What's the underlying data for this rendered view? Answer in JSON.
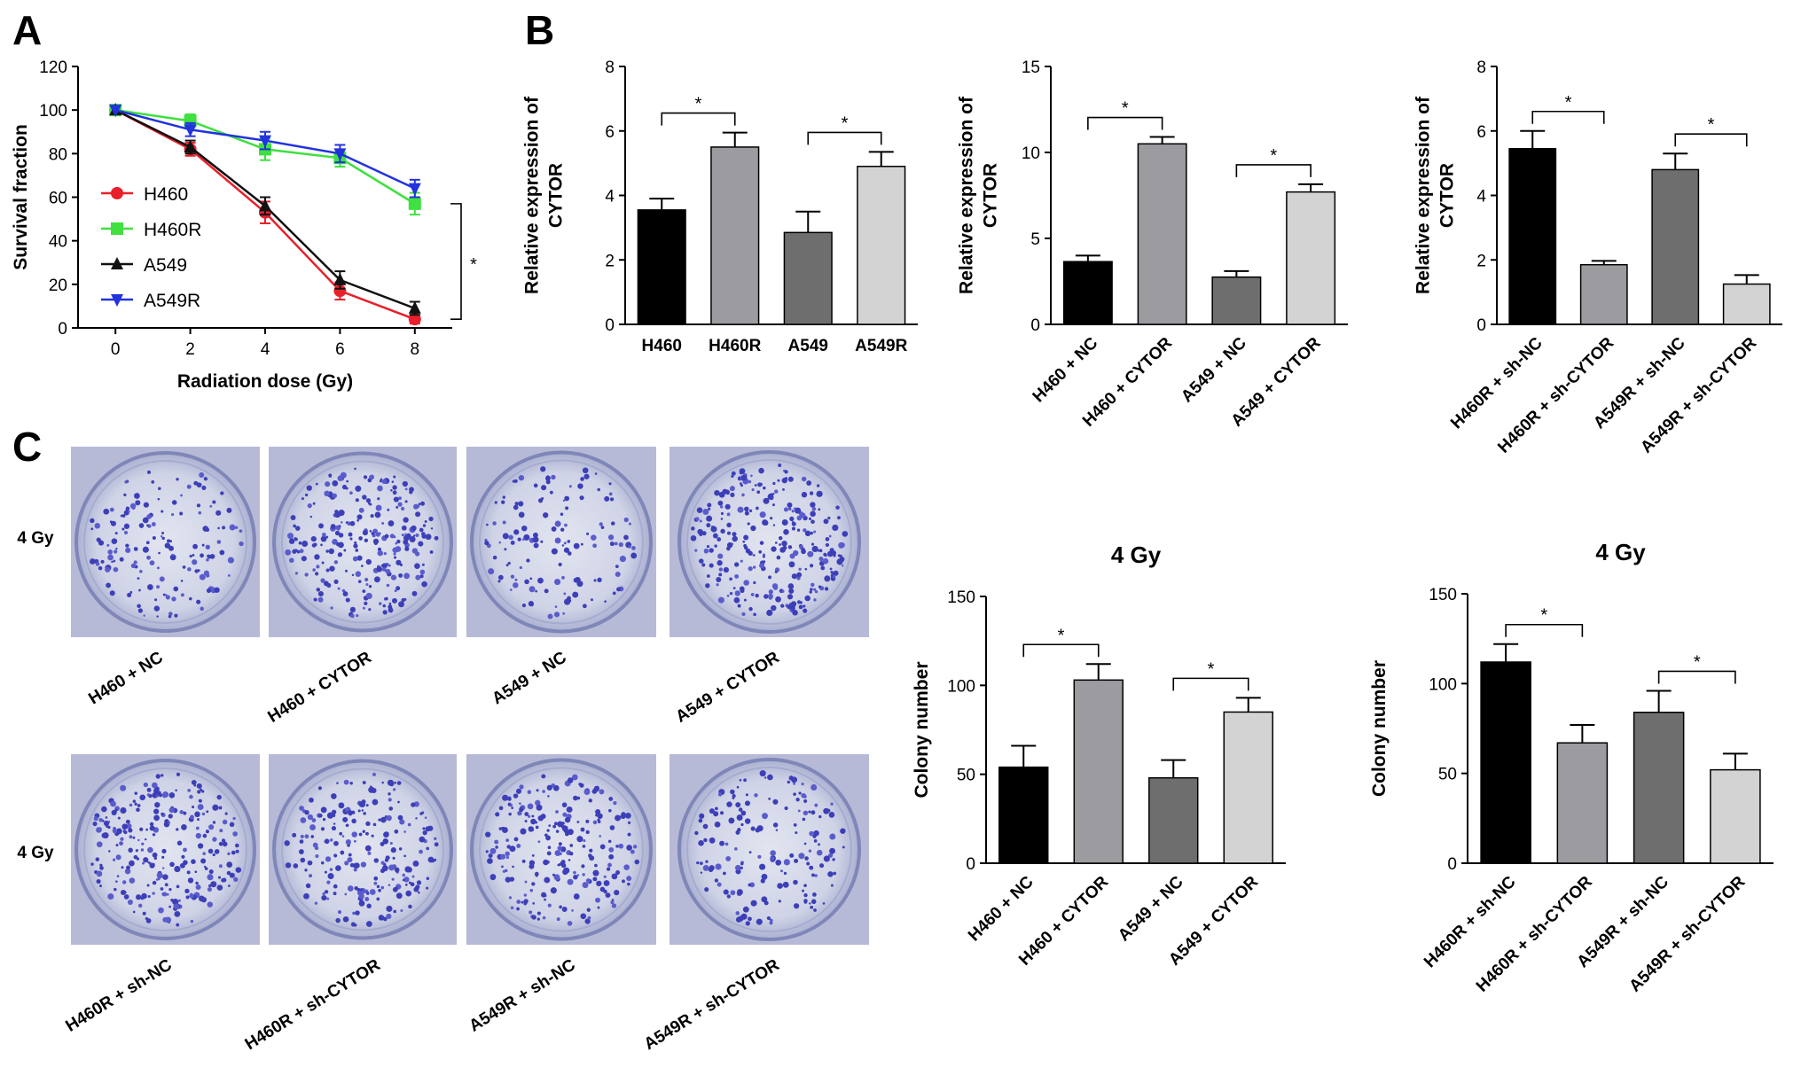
{
  "panels": {
    "a": "A",
    "b": "B",
    "c": "C"
  },
  "chart_data": [
    {
      "id": "A",
      "type": "line",
      "xlabel": "Radiation dose (Gy)",
      "ylabel": "Survival fraction",
      "x": [
        0,
        2,
        4,
        6,
        8
      ],
      "xticks": [
        "0",
        "2",
        "4",
        "6",
        "8"
      ],
      "ylim": [
        0,
        120
      ],
      "yticks": [
        "0",
        "20",
        "40",
        "60",
        "80",
        "100",
        "120"
      ],
      "legend_position": "left",
      "significance": "*",
      "series": [
        {
          "name": "H460",
          "color": "#e8202a",
          "marker": "circle",
          "values": [
            100,
            82,
            53,
            17,
            4
          ],
          "errors": [
            0,
            3,
            5,
            4,
            2
          ]
        },
        {
          "name": "H460R",
          "color": "#3fe03f",
          "marker": "square",
          "values": [
            100,
            95,
            82,
            78,
            57
          ],
          "errors": [
            0,
            3,
            5,
            4,
            5
          ]
        },
        {
          "name": "A549",
          "color": "#111111",
          "marker": "triangle",
          "values": [
            100,
            83,
            56,
            22,
            9
          ],
          "errors": [
            0,
            3,
            4,
            4,
            3
          ]
        },
        {
          "name": "A549R",
          "color": "#2233dd",
          "marker": "tri-down",
          "values": [
            100,
            91,
            86,
            80,
            64
          ],
          "errors": [
            0,
            3,
            4,
            4,
            4
          ]
        }
      ]
    },
    {
      "id": "B1",
      "type": "bar",
      "ylabel": [
        "Relative expression of",
        "CYTOR"
      ],
      "ylim": [
        0,
        8
      ],
      "yticks": [
        "0",
        "2",
        "4",
        "6",
        "8"
      ],
      "categories": [
        "H460",
        "H460R",
        "A549",
        "A549R"
      ],
      "values": [
        3.55,
        5.5,
        2.85,
        4.9
      ],
      "errors": [
        0.35,
        0.45,
        0.65,
        0.45
      ],
      "colors": [
        "#000000",
        "#9b9ba0",
        "#6e6e6e",
        "#d3d3d3"
      ],
      "brackets": [
        {
          "from": 0,
          "to": 1,
          "label": "*"
        },
        {
          "from": 2,
          "to": 3,
          "label": "*"
        }
      ]
    },
    {
      "id": "B2",
      "type": "bar",
      "ylabel": [
        "Relative expression of",
        "CYTOR"
      ],
      "ylim": [
        0,
        15
      ],
      "yticks": [
        "0",
        "5",
        "10",
        "15"
      ],
      "categories": [
        "H460 + NC",
        "H460 + CYTOR",
        "A549 + NC",
        "A549 + CYTOR"
      ],
      "values": [
        3.65,
        10.5,
        2.75,
        7.7
      ],
      "errors": [
        0.35,
        0.4,
        0.35,
        0.45
      ],
      "colors": [
        "#000000",
        "#9b9ba0",
        "#6e6e6e",
        "#d3d3d3"
      ],
      "brackets": [
        {
          "from": 0,
          "to": 1,
          "label": "*"
        },
        {
          "from": 2,
          "to": 3,
          "label": "*"
        }
      ]
    },
    {
      "id": "B3",
      "type": "bar",
      "ylabel": [
        "Relative expression of",
        "CYTOR"
      ],
      "ylim": [
        0,
        8
      ],
      "yticks": [
        "0",
        "2",
        "4",
        "6",
        "8"
      ],
      "categories": [
        "H460R + sh-NC",
        "H460R + sh-CYTOR",
        "A549R + sh-NC",
        "A549R + sh-CYTOR"
      ],
      "values": [
        5.45,
        1.85,
        4.8,
        1.25
      ],
      "errors": [
        0.55,
        0.12,
        0.5,
        0.28
      ],
      "colors": [
        "#000000",
        "#9b9ba0",
        "#6e6e6e",
        "#d3d3d3"
      ],
      "brackets": [
        {
          "from": 0,
          "to": 1,
          "label": "*"
        },
        {
          "from": 2,
          "to": 3,
          "label": "*"
        }
      ]
    },
    {
      "id": "C1",
      "type": "bar",
      "title": "4 Gy",
      "ylabel": [
        "Colony number"
      ],
      "ylim": [
        0,
        150
      ],
      "yticks": [
        "0",
        "50",
        "100",
        "150"
      ],
      "categories": [
        "H460 + NC",
        "H460 + CYTOR",
        "A549 + NC",
        "A549 + CYTOR"
      ],
      "values": [
        54,
        103,
        48,
        85
      ],
      "errors": [
        12,
        9,
        10,
        8
      ],
      "colors": [
        "#000000",
        "#9b9ba0",
        "#6e6e6e",
        "#d3d3d3"
      ],
      "brackets": [
        {
          "from": 0,
          "to": 1,
          "label": "*"
        },
        {
          "from": 2,
          "to": 3,
          "label": "*"
        }
      ]
    },
    {
      "id": "C2",
      "type": "bar",
      "title": "4 Gy",
      "ylabel": [
        "Colony number"
      ],
      "ylim": [
        0,
        150
      ],
      "yticks": [
        "0",
        "50",
        "100",
        "150"
      ],
      "categories": [
        "H460R + sh-NC",
        "H460R + sh-CYTOR",
        "A549R + sh-NC",
        "A549R + sh-CYTOR"
      ],
      "values": [
        112,
        67,
        84,
        52
      ],
      "errors": [
        10,
        10,
        12,
        9
      ],
      "colors": [
        "#000000",
        "#9b9ba0",
        "#6e6e6e",
        "#d3d3d3"
      ],
      "brackets": [
        {
          "from": 0,
          "to": 1,
          "label": "*"
        },
        {
          "from": 2,
          "to": 3,
          "label": "*"
        }
      ]
    }
  ],
  "plates": {
    "row_label_top": "4 Gy",
    "row_label_bottom": "4 Gy",
    "top": [
      "H460 + NC",
      "H460 + CYTOR",
      "A549 + NC",
      "A549 + CYTOR"
    ],
    "bottom": [
      "H460R + sh-NC",
      "H460R + sh-CYTOR",
      "A549R + sh-NC",
      "A549R + sh-CYTOR"
    ],
    "colony_density": [
      0.45,
      0.9,
      0.35,
      1.0,
      0.9,
      0.75,
      0.8,
      0.5
    ]
  }
}
